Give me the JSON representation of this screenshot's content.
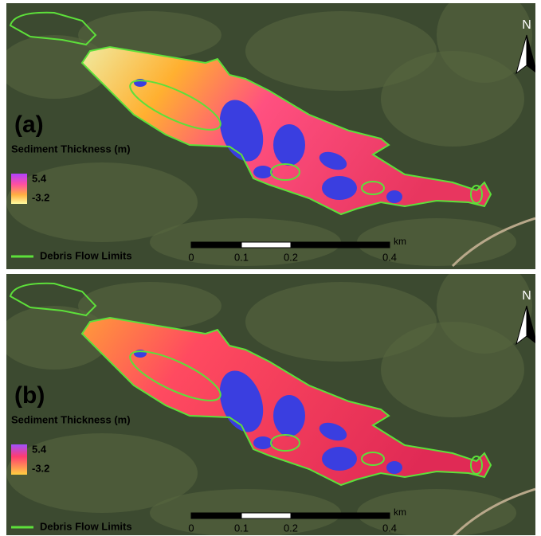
{
  "panels": [
    {
      "label": "(a)",
      "legend_title": "Sediment Thickness (m)",
      "legend_max": "5.4",
      "legend_min": "-3.2",
      "outline_legend": "Debris Flow Limits",
      "scale_labels": [
        "0",
        "0.1",
        "0.2",
        "0.4"
      ],
      "scale_unit": "km",
      "north": "N"
    },
    {
      "label": "(b)",
      "legend_title": "Sediment Thickness (m)",
      "legend_max": "5.4",
      "legend_min": "-3.2",
      "outline_legend": "Debris Flow Limits",
      "scale_labels": [
        "0",
        "0.1",
        "0.2",
        "0.4"
      ],
      "scale_unit": "km",
      "north": "N"
    }
  ]
}
